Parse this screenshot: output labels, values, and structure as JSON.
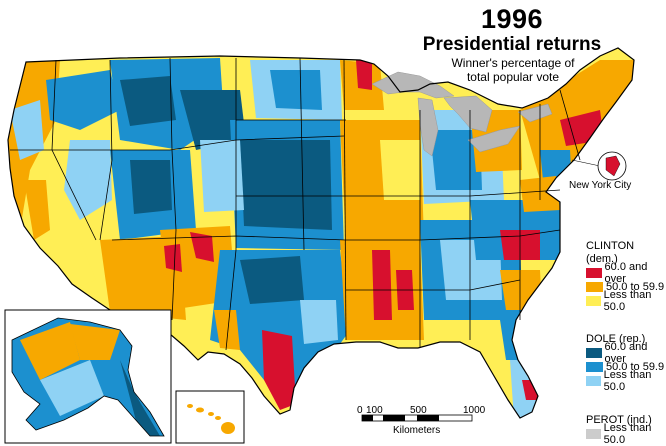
{
  "title": {
    "year": "1996",
    "main": "Presidential returns"
  },
  "subtitle": [
    "Winner's percentage of",
    "total popular vote"
  ],
  "inset_label": "New York City",
  "legend": [
    {
      "candidate": "CLINTON",
      "party": "(dem.)",
      "items": [
        {
          "label": "60.0 and over",
          "color": "#d7102e"
        },
        {
          "label": "50.0 to 59.9",
          "color": "#f7a800"
        },
        {
          "label": "Less than 50.0",
          "color": "#ffee55"
        }
      ]
    },
    {
      "candidate": "DOLE",
      "party": "(rep.)",
      "items": [
        {
          "label": "60.0 and over",
          "color": "#0b5a80"
        },
        {
          "label": "50.0 to 59.9",
          "color": "#1c90cf"
        },
        {
          "label": "Less than 50.0",
          "color": "#8fd2f4"
        }
      ]
    },
    {
      "candidate": "PEROT",
      "party": "(ind.)",
      "items": [
        {
          "label": "Less than 50.0",
          "color": "#cccccc"
        }
      ]
    }
  ],
  "scale_bar": {
    "ticks": [
      "0",
      "100",
      "500",
      "1000"
    ],
    "unit": "Kilometers"
  },
  "colors": {
    "lakes": "#b7b7b7",
    "borders": "#000000",
    "ocean": "#ffffff"
  }
}
